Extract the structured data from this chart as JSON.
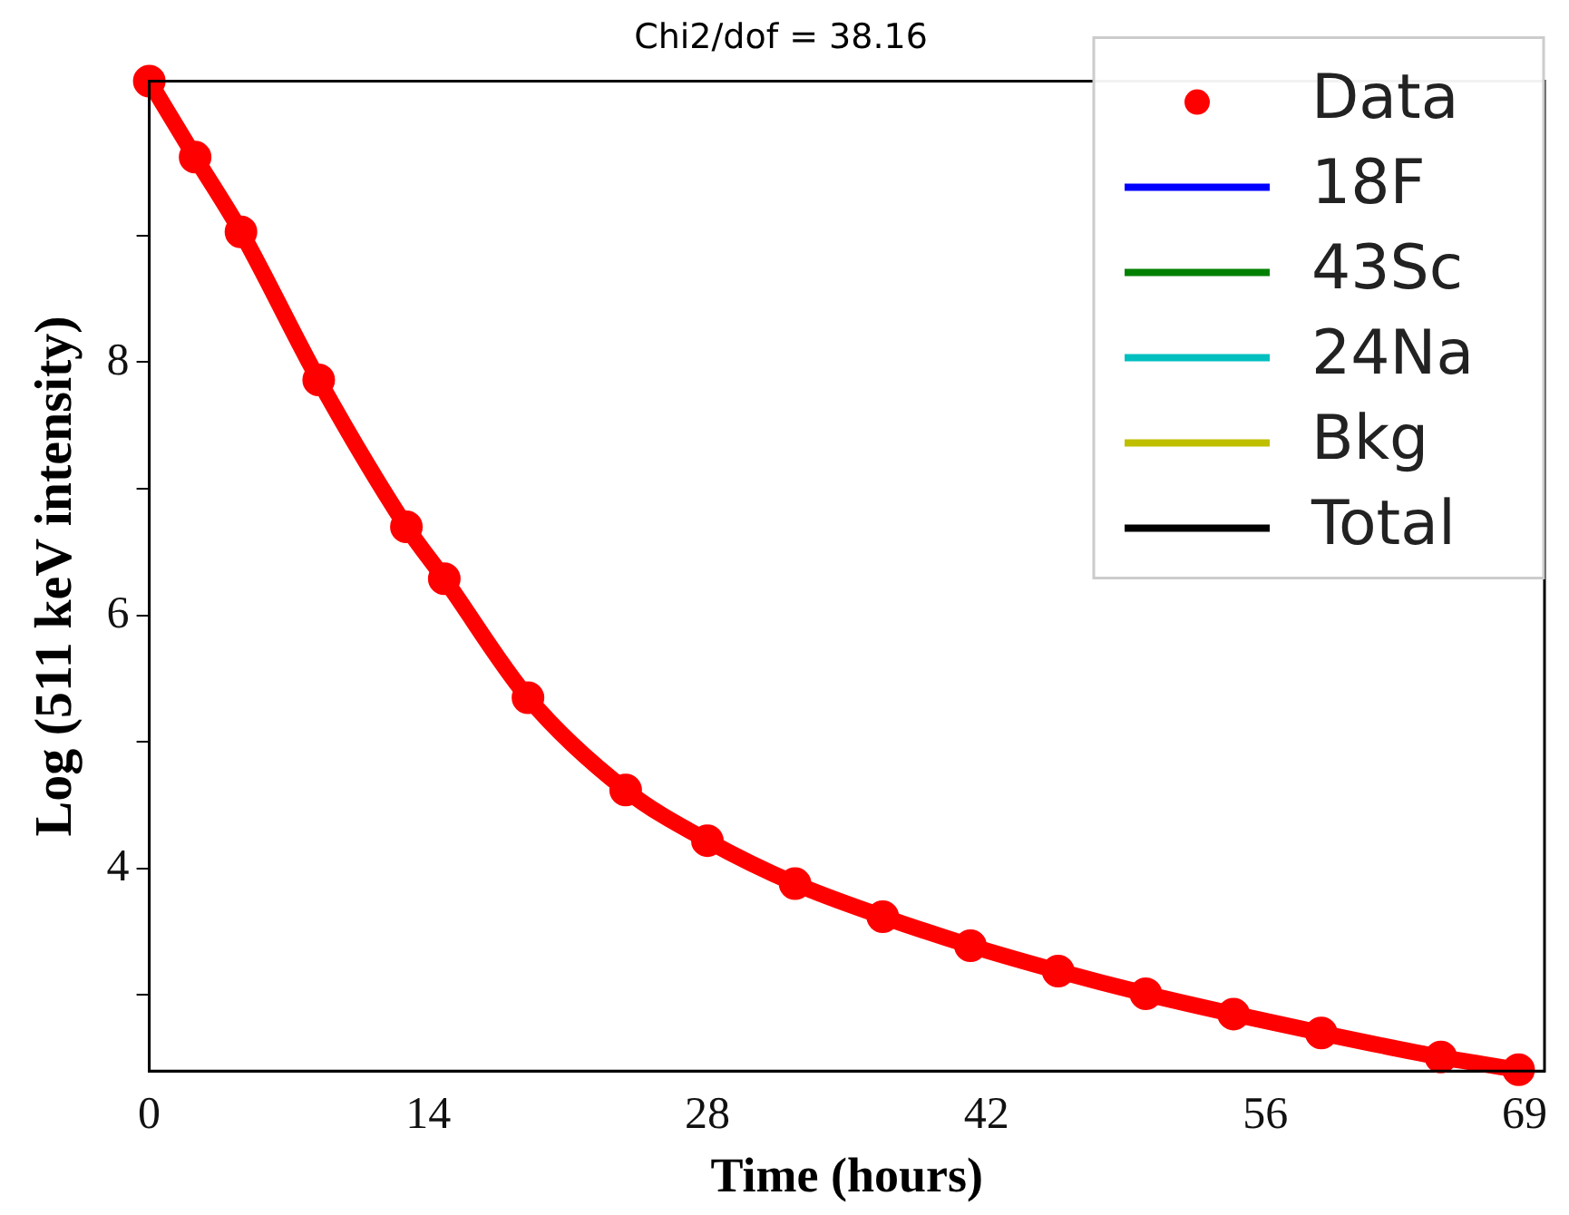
{
  "chart_data": {
    "type": "line",
    "title": "Chi2/dof = 38.16",
    "xlabel": "Time (hours)",
    "ylabel": "Log (511 keV intensity)",
    "x": [
      0,
      2.3,
      4.6,
      8.5,
      12.9,
      14.8,
      19,
      23.9,
      28,
      32.4,
      36.8,
      41.2,
      45.6,
      50,
      54.4,
      58.8,
      64.8,
      68.7
    ],
    "series": [
      {
        "name": "Data",
        "color": "#ff0000",
        "marker": "circle",
        "values": [
          10.22,
          9.62,
          9.03,
          7.86,
          6.7,
          6.29,
          5.35,
          4.62,
          4.22,
          3.88,
          3.62,
          3.39,
          3.19,
          3.01,
          2.85,
          2.7,
          2.51,
          2.41
        ]
      },
      {
        "name": "18F",
        "color": "#0000ff",
        "values": [
          null,
          null,
          null,
          null,
          null,
          null,
          null,
          null,
          null,
          null,
          null,
          null,
          null,
          null,
          null,
          null,
          null,
          null
        ]
      },
      {
        "name": "43Sc",
        "color": "#008000",
        "values": [
          null,
          null,
          null,
          null,
          null,
          null,
          null,
          null,
          null,
          null,
          null,
          null,
          null,
          null,
          null,
          null,
          null,
          null
        ]
      },
      {
        "name": "24Na",
        "color": "#00bfbf",
        "values": [
          null,
          null,
          null,
          null,
          null,
          null,
          null,
          null,
          null,
          null,
          null,
          null,
          null,
          null,
          null,
          null,
          null,
          null
        ]
      },
      {
        "name": "Bkg",
        "color": "#bfbf00",
        "values": [
          null,
          null,
          null,
          null,
          null,
          null,
          null,
          null,
          null,
          null,
          null,
          null,
          null,
          null,
          null,
          null,
          null,
          null
        ]
      },
      {
        "name": "Total",
        "color": "#000000",
        "values": [
          null,
          null,
          null,
          null,
          null,
          null,
          null,
          null,
          null,
          null,
          null,
          null,
          null,
          null,
          null,
          null,
          null,
          null
        ]
      }
    ],
    "xlim": [
      0,
      70
    ],
    "xticks": [
      0,
      14,
      28,
      42,
      56,
      69
    ],
    "ylim": [
      2.4,
      10.22
    ],
    "yticks": [
      {
        "value": 3,
        "label": null
      },
      4,
      {
        "value": 5,
        "label": null
      },
      6,
      {
        "value": 7,
        "label": null
      },
      8,
      {
        "value": 9,
        "label": null
      }
    ],
    "legend": "top right",
    "grid": false
  }
}
